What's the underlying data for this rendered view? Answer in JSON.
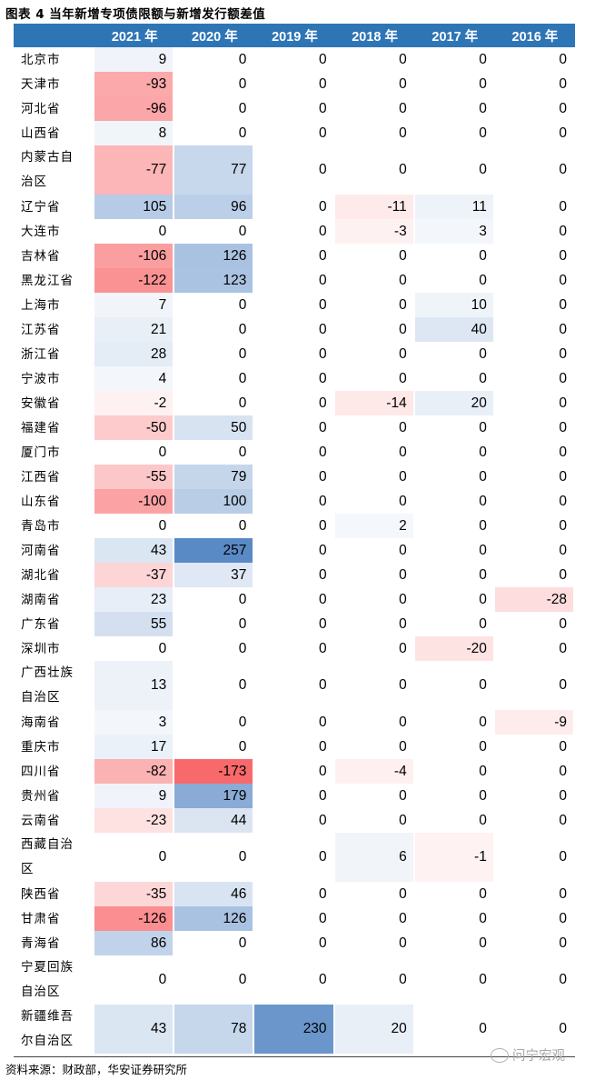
{
  "title": "图表 4 当年新增专项债限额与新增发行额差值",
  "columns": [
    "",
    "2021 年",
    "2020 年",
    "2019 年",
    "2018 年",
    "2017 年",
    "2016 年"
  ],
  "rows": [
    {
      "name": "北京市",
      "values": [
        "9",
        "0",
        "0",
        "0",
        "0",
        "0"
      ]
    },
    {
      "name": "天津市",
      "values": [
        "-93",
        "0",
        "0",
        "0",
        "0",
        "0"
      ]
    },
    {
      "name": "河北省",
      "values": [
        "-96",
        "0",
        "0",
        "0",
        "0",
        "0"
      ]
    },
    {
      "name": "山西省",
      "values": [
        "8",
        "0",
        "0",
        "0",
        "0",
        "0"
      ]
    },
    {
      "name": "内蒙古自治区",
      "values": [
        "-77",
        "77",
        "0",
        "0",
        "0",
        "0"
      ]
    },
    {
      "name": "辽宁省",
      "values": [
        "105",
        "96",
        "0",
        "-11",
        "11",
        "0"
      ]
    },
    {
      "name": "大连市",
      "values": [
        "0",
        "0",
        "0",
        "-3",
        "3",
        "0"
      ]
    },
    {
      "name": "吉林省",
      "values": [
        "-106",
        "126",
        "0",
        "0",
        "0",
        "0"
      ]
    },
    {
      "name": "黑龙江省",
      "values": [
        "-122",
        "123",
        "0",
        "0",
        "0",
        "0"
      ]
    },
    {
      "name": "上海市",
      "values": [
        "7",
        "0",
        "0",
        "0",
        "10",
        "0"
      ]
    },
    {
      "name": "江苏省",
      "values": [
        "21",
        "0",
        "0",
        "0",
        "40",
        "0"
      ]
    },
    {
      "name": "浙江省",
      "values": [
        "28",
        "0",
        "0",
        "0",
        "0",
        "0"
      ]
    },
    {
      "name": "宁波市",
      "values": [
        "4",
        "0",
        "0",
        "0",
        "0",
        "0"
      ]
    },
    {
      "name": "安徽省",
      "values": [
        "-2",
        "0",
        "0",
        "-14",
        "20",
        "0"
      ]
    },
    {
      "name": "福建省",
      "values": [
        "-50",
        "50",
        "0",
        "0",
        "0",
        "0"
      ]
    },
    {
      "name": "厦门市",
      "values": [
        "0",
        "0",
        "0",
        "0",
        "0",
        "0"
      ]
    },
    {
      "name": "江西省",
      "values": [
        "-55",
        "79",
        "0",
        "0",
        "0",
        "0"
      ]
    },
    {
      "name": "山东省",
      "values": [
        "-100",
        "100",
        "0",
        "0",
        "0",
        "0"
      ]
    },
    {
      "name": "青岛市",
      "values": [
        "0",
        "0",
        "0",
        "2",
        "0",
        "0"
      ]
    },
    {
      "name": "河南省",
      "values": [
        "43",
        "257",
        "0",
        "0",
        "0",
        "0"
      ]
    },
    {
      "name": "湖北省",
      "values": [
        "-37",
        "37",
        "0",
        "0",
        "0",
        "0"
      ]
    },
    {
      "name": "湖南省",
      "values": [
        "23",
        "0",
        "0",
        "0",
        "0",
        "-28"
      ]
    },
    {
      "name": "广东省",
      "values": [
        "55",
        "0",
        "0",
        "0",
        "0",
        "0"
      ]
    },
    {
      "name": "深圳市",
      "values": [
        "0",
        "0",
        "0",
        "0",
        "-20",
        "0"
      ]
    },
    {
      "name": "广西壮族自治区",
      "values": [
        "13",
        "0",
        "0",
        "0",
        "0",
        "0"
      ]
    },
    {
      "name": "海南省",
      "values": [
        "3",
        "0",
        "0",
        "0",
        "0",
        "-9"
      ]
    },
    {
      "name": "重庆市",
      "values": [
        "17",
        "0",
        "0",
        "0",
        "0",
        "0"
      ]
    },
    {
      "name": "四川省",
      "values": [
        "-82",
        "-173",
        "0",
        "-4",
        "0",
        "0"
      ]
    },
    {
      "name": "贵州省",
      "values": [
        "9",
        "179",
        "0",
        "0",
        "0",
        "0"
      ]
    },
    {
      "name": "云南省",
      "values": [
        "-23",
        "44",
        "0",
        "0",
        "0",
        "0"
      ]
    },
    {
      "name": "西藏自治区",
      "values": [
        "0",
        "0",
        "0",
        "6",
        "-1",
        "0"
      ]
    },
    {
      "name": "陕西省",
      "values": [
        "-35",
        "46",
        "0",
        "0",
        "0",
        "0"
      ]
    },
    {
      "name": "甘肃省",
      "values": [
        "-126",
        "126",
        "0",
        "0",
        "0",
        "0"
      ]
    },
    {
      "name": "青海省",
      "values": [
        "86",
        "0",
        "0",
        "0",
        "0",
        "0"
      ]
    },
    {
      "name": "宁夏回族自治区",
      "values": [
        "0",
        "0",
        "0",
        "0",
        "0",
        "0"
      ]
    },
    {
      "name": "新疆维吾尔自治区",
      "values": [
        "43",
        "78",
        "230",
        "20",
        "0",
        "0"
      ]
    }
  ],
  "scale": {
    "neg_max": 173,
    "pos_max": 257
  },
  "colors": {
    "header": "#2e75b6",
    "negative": "#f8696b",
    "positive": "#5a8ac6"
  },
  "source": "资料来源：财政部，华安证券研究所",
  "watermark": "问宁宏观"
}
